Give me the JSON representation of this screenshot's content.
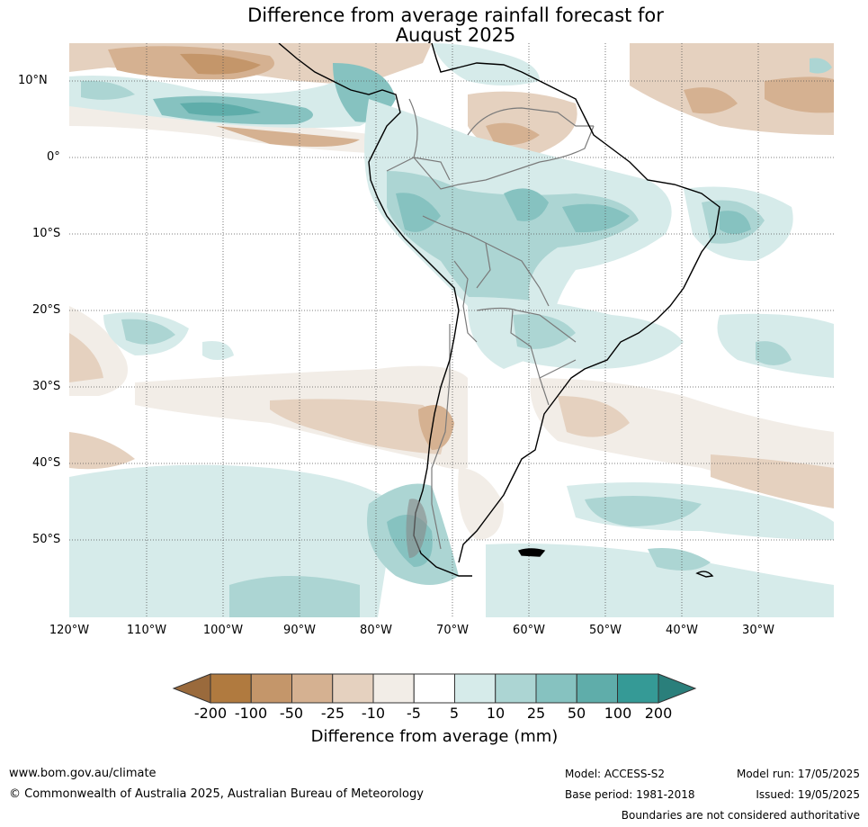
{
  "title": {
    "line1": "Difference from average rainfall forecast for",
    "line2": "August 2025"
  },
  "map": {
    "lat_labels": [
      "10°N",
      "0°",
      "10°S",
      "20°S",
      "30°S",
      "40°S",
      "50°S"
    ],
    "lon_labels": [
      "120°W",
      "110°W",
      "100°W",
      "90°W",
      "80°W",
      "70°W",
      "60°W",
      "50°W",
      "40°W",
      "30°W"
    ]
  },
  "colorbar": {
    "title": "Difference from average (mm)",
    "ticks": [
      "-200",
      "-100",
      "-50",
      "-25",
      "-10",
      "-5",
      "5",
      "10",
      "25",
      "50",
      "100",
      "200"
    ],
    "colors": [
      "#9a6a3c",
      "#b07a3f",
      "#c4966a",
      "#d5b191",
      "#e5d1bf",
      "#f2ede7",
      "#ffffff",
      "#d6ebea",
      "#acd5d3",
      "#86c2c0",
      "#5fadaa",
      "#359a96",
      "#2a7f7b"
    ]
  },
  "footer": {
    "url": "www.bom.gov.au/climate",
    "copyright": "© Commonwealth of Australia 2025, Australian Bureau of Meteorology",
    "model": "Model: ACCESS-S2",
    "base_period": "Base period: 1981-2018",
    "model_run": "Model run: 17/05/2025",
    "issued": "Issued: 19/05/2025",
    "disclaimer": "Boundaries are not considered authoritative"
  }
}
